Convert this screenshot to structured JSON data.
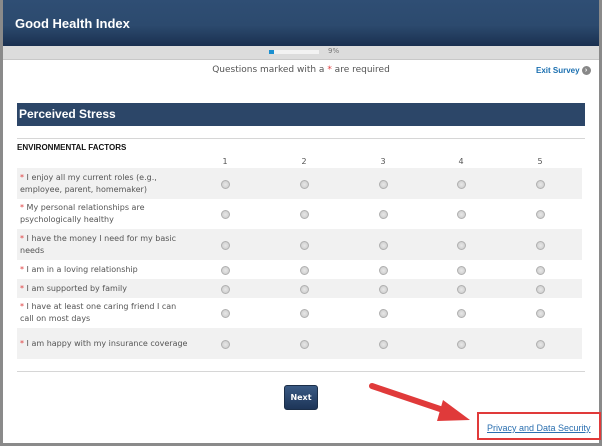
{
  "header": {
    "title": "Good Health Index"
  },
  "progress": {
    "percent": 9,
    "label": "9%"
  },
  "required_note": {
    "before": "Questions marked with a ",
    "star": "*",
    "after": " are required"
  },
  "exit_label": "Exit Survey",
  "section_title": "Perceived Stress",
  "group_title": "ENVIRONMENTAL FACTORS",
  "scale": [
    "1",
    "2",
    "3",
    "4",
    "5"
  ],
  "questions": [
    {
      "text": "I enjoy all my current roles (e.g., employee, parent, homemaker)"
    },
    {
      "text": "My personal relationships are psychologically healthy"
    },
    {
      "text": "I have the money I need for my basic needs"
    },
    {
      "text": "I am in a loving relationship"
    },
    {
      "text": "I am supported by family"
    },
    {
      "text": "I have at least one caring friend I can call on most days"
    },
    {
      "text": "I am happy with my insurance coverage"
    }
  ],
  "next_label": "Next",
  "privacy_link": "Privacy and Data Security",
  "colors": {
    "header": "#2c4a6e",
    "accent": "#1a8fd0",
    "annotation": "#e03a3a"
  }
}
